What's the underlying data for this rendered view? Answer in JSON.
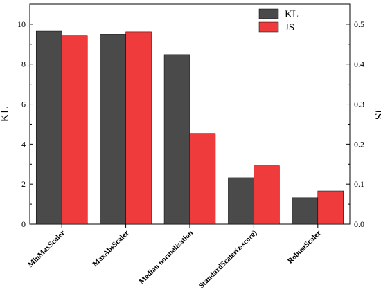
{
  "chart_data": {
    "type": "bar",
    "categories": [
      "MinMaxScaler",
      "MaxAbsScaler",
      "Median normalization",
      "StandardScaler(z-score)",
      "RobustScaler"
    ],
    "series": [
      {
        "name": "KL",
        "axis": "left",
        "color": "#4a4a4a",
        "values": [
          9.65,
          9.5,
          8.48,
          2.32,
          1.32
        ]
      },
      {
        "name": "JS",
        "axis": "right",
        "color": "#ef3b3b",
        "values": [
          0.471,
          0.481,
          0.227,
          0.146,
          0.083
        ]
      }
    ],
    "ylabel": "KL",
    "ylabel_right": "JS",
    "ylim": [
      0,
      11
    ],
    "ylim_right": [
      0,
      0.55
    ],
    "yticks": [
      0,
      2,
      4,
      6,
      8,
      10
    ],
    "yticks_right": [
      0.0,
      0.1,
      0.2,
      0.3,
      0.4,
      0.5
    ],
    "yticks_labels": [
      "0",
      "2",
      "4",
      "6",
      "8",
      "10"
    ],
    "yticks_right_labels": [
      "0.0",
      "0.1",
      "0.2",
      "0.3",
      "0.4",
      "0.5"
    ],
    "legend_position": "top-right",
    "grid": false
  }
}
